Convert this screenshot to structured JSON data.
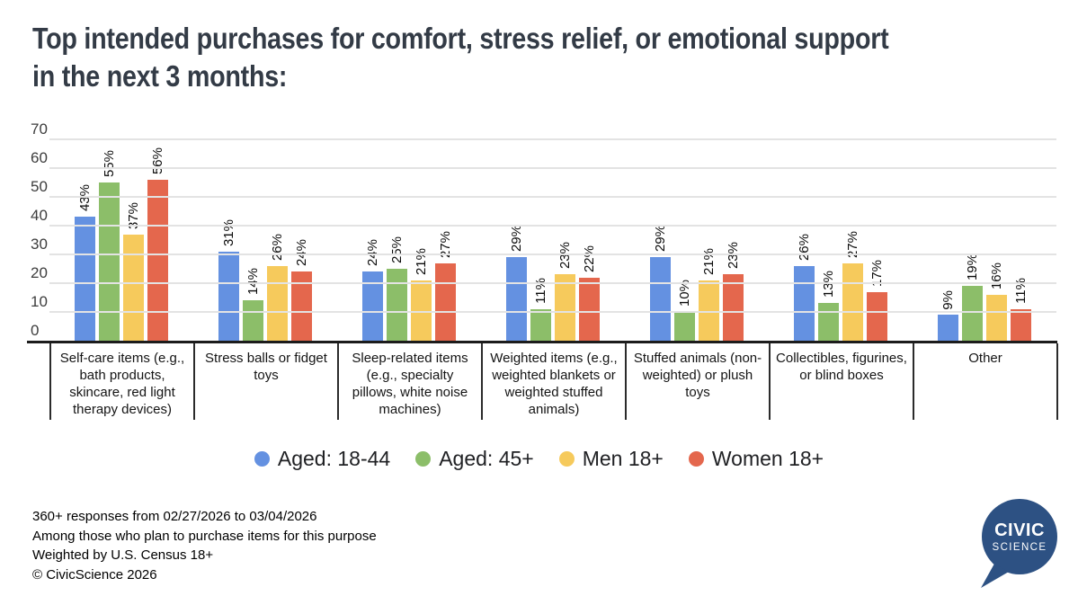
{
  "title_lines": [
    "Top intended purchases for comfort, stress relief, or emotional support",
    "in the next 3 months:"
  ],
  "chart_data": {
    "type": "bar",
    "categories": [
      "Self-care items (e.g., bath products, skincare, red light therapy devices)",
      "Stress balls or fidget toys",
      "Sleep-related items (e.g., specialty pillows, white noise machines)",
      "Weighted items (e.g., weighted blankets or weighted stuffed animals)",
      "Stuffed animals (non-weighted) or plush toys",
      "Collectibles, figurines, or blind boxes",
      "Other"
    ],
    "series": [
      {
        "name": "Aged: 18-44",
        "color": "#6491e1",
        "values": [
          43,
          31,
          24,
          29,
          29,
          26,
          9
        ]
      },
      {
        "name": "Aged: 45+",
        "color": "#8cbe69",
        "values": [
          55,
          14,
          25,
          11,
          10,
          13,
          19
        ]
      },
      {
        "name": "Men 18+",
        "color": "#f6ca5c",
        "values": [
          37,
          26,
          21,
          23,
          21,
          27,
          16
        ]
      },
      {
        "name": "Women 18+",
        "color": "#e4674d",
        "values": [
          56,
          24,
          27,
          22,
          23,
          17,
          11
        ]
      }
    ],
    "value_suffix": "%",
    "ylim": [
      0,
      70
    ],
    "ytick_step": 10,
    "grid": true,
    "legend_position": "bottom"
  },
  "footer": {
    "lines": [
      "360+ responses from 02/27/2026 to 03/04/2026",
      "Among those who plan to purchase items for this purpose",
      "Weighted by U.S. Census 18+",
      "© CivicScience 2026"
    ]
  },
  "logo": {
    "line1": "CIVIC",
    "line2": "SCIENCE",
    "color": "#2d5183"
  }
}
